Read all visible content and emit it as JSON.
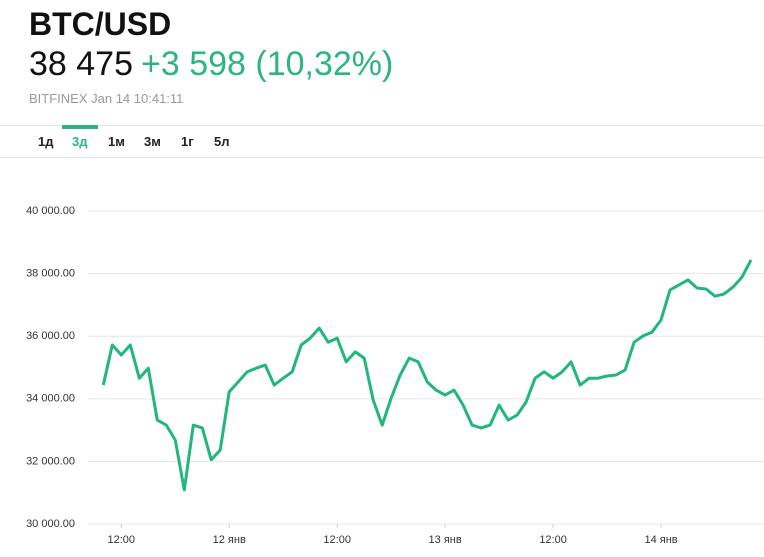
{
  "header": {
    "symbol": "BTC/USD",
    "price": "38 475",
    "change": "+3 598 (10,32%)",
    "source": "BITFINEX Jan 14 10:41:11"
  },
  "tabs": {
    "items": [
      "1д",
      "3д",
      "1м",
      "3м",
      "1г",
      "5л"
    ],
    "active": 1
  },
  "chart_data": {
    "type": "line",
    "color": "#21b77b",
    "grid": true,
    "x": [
      10,
      11,
      12,
      13,
      14,
      15,
      16,
      17,
      18,
      19,
      20,
      21,
      22,
      23,
      24,
      25,
      26,
      27,
      28,
      29,
      30,
      31,
      32,
      33,
      34,
      35,
      36,
      37,
      38,
      39,
      40,
      41,
      42,
      43,
      44,
      45,
      46,
      47,
      48,
      49,
      50,
      51,
      52,
      53,
      54,
      55,
      56,
      57,
      58,
      59,
      60,
      61,
      62,
      63,
      64,
      65,
      66,
      67,
      68,
      69,
      70,
      71,
      72,
      73,
      74,
      75,
      76,
      77,
      78,
      79,
      80,
      81,
      82
    ],
    "values": [
      34440,
      35720,
      35400,
      35720,
      34660,
      34980,
      33320,
      33160,
      32680,
      31090,
      33160,
      33070,
      32050,
      32360,
      34220,
      34540,
      34860,
      34980,
      35080,
      34440,
      34660,
      34860,
      35720,
      35940,
      36260,
      35810,
      35940,
      35180,
      35500,
      35300,
      33960,
      33160,
      34030,
      34760,
      35300,
      35180,
      34540,
      34280,
      34120,
      34280,
      33800,
      33160,
      33070,
      33160,
      33800,
      33320,
      33480,
      33900,
      34660,
      34860,
      34660,
      34860,
      35180,
      34440,
      34660,
      34660,
      34730,
      34760,
      34920,
      35810,
      36010,
      36130,
      36520,
      37480,
      37640,
      37800,
      37540,
      37510,
      37280,
      37350,
      37570,
      37890,
      38440
    ],
    "xlim": [
      9.3,
      83
    ],
    "xticks": [
      {
        "value": 12,
        "label": "12:00"
      },
      {
        "value": 24,
        "label": "12 янв"
      },
      {
        "value": 36,
        "label": "12:00"
      },
      {
        "value": 48,
        "label": "13 янв"
      },
      {
        "value": 60,
        "label": "12:00"
      },
      {
        "value": 72,
        "label": "14 янв"
      }
    ],
    "ylim": [
      30000,
      41600
    ],
    "yticks": [
      {
        "value": 30000,
        "label": "30 000.00"
      },
      {
        "value": 32000,
        "label": "32 000.00"
      },
      {
        "value": 34000,
        "label": "34 000.00"
      },
      {
        "value": 36000,
        "label": "36 000.00"
      },
      {
        "value": 38000,
        "label": "38 000.00"
      },
      {
        "value": 40000,
        "label": "40 000.00"
      }
    ]
  }
}
